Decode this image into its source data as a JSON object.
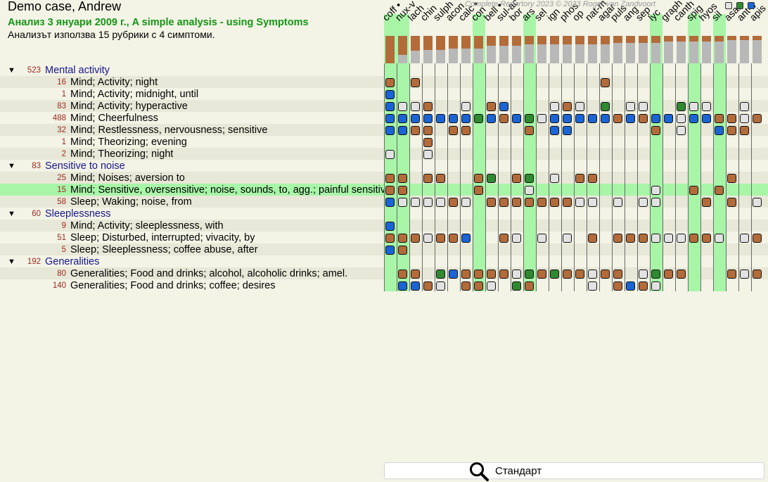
{
  "header": {
    "case_title": "Demo case, Andrew",
    "analysis_title": "Анализ 3 януари 2009 г., A simple analysis - using Symptoms",
    "analysis_subtitle": "Анализът използва 15 рубрики с 4 симптоми.",
    "copyright": "Complete Repertory 2023 © 2023 Roger van Zandvoort"
  },
  "filter_squares": [
    {
      "name": "filter-grey-square",
      "color": "#e2e2e2"
    },
    {
      "name": "filter-green-square",
      "color": "#2f8a2f"
    },
    {
      "name": "filter-blue-square",
      "color": "#1a64d4"
    }
  ],
  "grade_colors": [
    "#e2e2e2",
    "#b36b3a",
    "#2f8a2f",
    "#1a64d4"
  ],
  "remedies": [
    {
      "abbr": "coff •",
      "hl": true,
      "score": 1.0
    },
    {
      "abbr": "nux-v",
      "hl": true,
      "score": 0.7
    },
    {
      "abbr": "lach",
      "hl": false,
      "score": 0.55
    },
    {
      "abbr": "chin",
      "hl": false,
      "score": 0.5
    },
    {
      "abbr": "sulph",
      "hl": false,
      "score": 0.5
    },
    {
      "abbr": "acon",
      "hl": false,
      "score": 0.45
    },
    {
      "abbr": "calc •",
      "hl": false,
      "score": 0.45
    },
    {
      "abbr": "con",
      "hl": true,
      "score": 0.45
    },
    {
      "abbr": "bell •",
      "hl": false,
      "score": 0.35
    },
    {
      "abbr": "sul-ac",
      "hl": false,
      "score": 0.35
    },
    {
      "abbr": "bor",
      "hl": false,
      "score": 0.35
    },
    {
      "abbr": "ars",
      "hl": true,
      "score": 0.3
    },
    {
      "abbr": "sel",
      "hl": false,
      "score": 0.3
    },
    {
      "abbr": "ign",
      "hl": false,
      "score": 0.3
    },
    {
      "abbr": "phos",
      "hl": false,
      "score": 0.3
    },
    {
      "abbr": "op",
      "hl": false,
      "score": 0.3
    },
    {
      "abbr": "nat-m",
      "hl": false,
      "score": 0.3
    },
    {
      "abbr": "agar",
      "hl": false,
      "score": 0.3
    },
    {
      "abbr": "puls",
      "hl": false,
      "score": 0.25
    },
    {
      "abbr": "ang",
      "hl": false,
      "score": 0.25
    },
    {
      "abbr": "sep",
      "hl": false,
      "score": 0.25
    },
    {
      "abbr": "lyc",
      "hl": true,
      "score": 0.25
    },
    {
      "abbr": "graph",
      "hl": false,
      "score": 0.2
    },
    {
      "abbr": "canth",
      "hl": false,
      "score": 0.2
    },
    {
      "abbr": "spig",
      "hl": true,
      "score": 0.2
    },
    {
      "abbr": "hyos",
      "hl": false,
      "score": 0.2
    },
    {
      "abbr": "sil",
      "hl": true,
      "score": 0.2
    },
    {
      "abbr": "asar",
      "hl": false,
      "score": 0.15
    },
    {
      "abbr": "ant-c",
      "hl": false,
      "score": 0.15
    },
    {
      "abbr": "apis",
      "hl": false,
      "score": 0.15
    }
  ],
  "groups": [
    {
      "count": "523",
      "label": "Mental activity",
      "rubrics": [
        {
          "count": "16",
          "label": "Mind; Activity; night",
          "cells": {
            "0": 1,
            "2": 1,
            "17": 1
          }
        },
        {
          "count": "1",
          "label": "Mind; Activity; midnight, until",
          "cells": {
            "0": 3
          }
        },
        {
          "count": "83",
          "label": "Mind; Activity; hyperactive",
          "cells": {
            "0": 3,
            "1": 0,
            "2": 0,
            "3": 1,
            "6": 0,
            "8": 1,
            "9": 3,
            "13": 0,
            "14": 1,
            "15": 0,
            "17": 2,
            "19": 0,
            "20": 0,
            "23": 2,
            "24": 0,
            "25": 0,
            "28": 0
          }
        },
        {
          "count": "488",
          "label": "Mind; Cheerfulness",
          "cells": {
            "0": 3,
            "1": 3,
            "2": 3,
            "3": 3,
            "4": 3,
            "5": 3,
            "6": 3,
            "7": 2,
            "8": 3,
            "9": 1,
            "10": 3,
            "11": 2,
            "12": 0,
            "13": 3,
            "14": 3,
            "15": 3,
            "16": 3,
            "17": 3,
            "18": 1,
            "19": 3,
            "20": 1,
            "21": 3,
            "22": 3,
            "23": 0,
            "24": 3,
            "25": 3,
            "26": 1,
            "27": 1,
            "28": 0,
            "29": 1
          }
        },
        {
          "count": "32",
          "label": "Mind; Restlessness, nervousness; sensitive",
          "cells": {
            "0": 3,
            "1": 3,
            "2": 1,
            "3": 1,
            "5": 1,
            "6": 1,
            "11": 1,
            "13": 3,
            "14": 3,
            "21": 1,
            "23": 0,
            "26": 3,
            "27": 1,
            "28": 1
          }
        },
        {
          "count": "1",
          "label": "Mind; Theorizing; evening",
          "cells": {
            "3": 1
          }
        },
        {
          "count": "2",
          "label": "Mind; Theorizing; night",
          "cells": {
            "0": 0,
            "3": 0
          }
        }
      ]
    },
    {
      "count": "83",
      "label": "Sensitive to noise",
      "rubrics": [
        {
          "count": "25",
          "label": "Mind; Noises; aversion to",
          "cells": {
            "0": 1,
            "1": 1,
            "3": 1,
            "4": 1,
            "7": 1,
            "8": 2,
            "10": 1,
            "11": 2,
            "13": 0,
            "15": 1,
            "16": 1,
            "27": 1
          }
        },
        {
          "count": "15",
          "label": "Mind; Sensitive, oversensitive; noise, sounds, to, agg.; painful sensitiveness",
          "sel": true,
          "cells": {
            "0": 1,
            "1": 1,
            "7": 1,
            "11": 0,
            "21": 0,
            "24": 1,
            "26": 1
          }
        },
        {
          "count": "58",
          "label": "Sleep; Waking; noise, from",
          "cells": {
            "0": 3,
            "1": 0,
            "2": 0,
            "3": 0,
            "4": 0,
            "5": 1,
            "6": 0,
            "8": 1,
            "9": 1,
            "10": 1,
            "11": 1,
            "12": 1,
            "13": 1,
            "14": 1,
            "15": 0,
            "16": 0,
            "18": 0,
            "20": 0,
            "21": 0,
            "25": 1,
            "27": 1,
            "29": 0
          }
        }
      ]
    },
    {
      "count": "60",
      "label": "Sleeplessness",
      "rubrics": [
        {
          "count": "9",
          "label": "Mind; Activity; sleeplessness, with",
          "cells": {
            "0": 3
          }
        },
        {
          "count": "51",
          "label": "Sleep; Disturbed, interrupted; vivacity, by",
          "cells": {
            "0": 1,
            "1": 1,
            "2": 1,
            "3": 0,
            "4": 1,
            "5": 1,
            "6": 3,
            "9": 1,
            "10": 0,
            "12": 0,
            "14": 0,
            "16": 1,
            "18": 1,
            "19": 1,
            "20": 1,
            "21": 0,
            "22": 0,
            "23": 0,
            "24": 1,
            "25": 1,
            "26": 0,
            "28": 0,
            "29": 1
          }
        },
        {
          "count": "5",
          "label": "Sleep; Sleeplessness; coffee abuse, after",
          "cells": {
            "0": 3,
            "1": 1
          }
        }
      ]
    },
    {
      "count": "192",
      "label": "Generalities",
      "rubrics": [
        {
          "count": "80",
          "label": "Generalities; Food and drinks; alcohol, alcoholic drinks; amel.",
          "cells": {
            "1": 1,
            "2": 1,
            "4": 2,
            "5": 3,
            "6": 1,
            "7": 1,
            "8": 1,
            "9": 1,
            "10": 0,
            "11": 2,
            "12": 1,
            "13": 2,
            "14": 1,
            "15": 1,
            "16": 0,
            "17": 1,
            "18": 1,
            "20": 0,
            "21": 2,
            "22": 1,
            "23": 1,
            "27": 1,
            "28": 0,
            "29": 1
          }
        },
        {
          "count": "140",
          "label": "Generalities; Food and drinks; coffee; desires",
          "cells": {
            "1": 3,
            "2": 3,
            "3": 1,
            "4": 0,
            "6": 1,
            "7": 1,
            "8": 0,
            "10": 2,
            "11": 1,
            "16": 0,
            "18": 1,
            "19": 3,
            "20": 1,
            "21": 0
          }
        }
      ]
    }
  ],
  "search": {
    "mode_label": "Стандарт"
  }
}
